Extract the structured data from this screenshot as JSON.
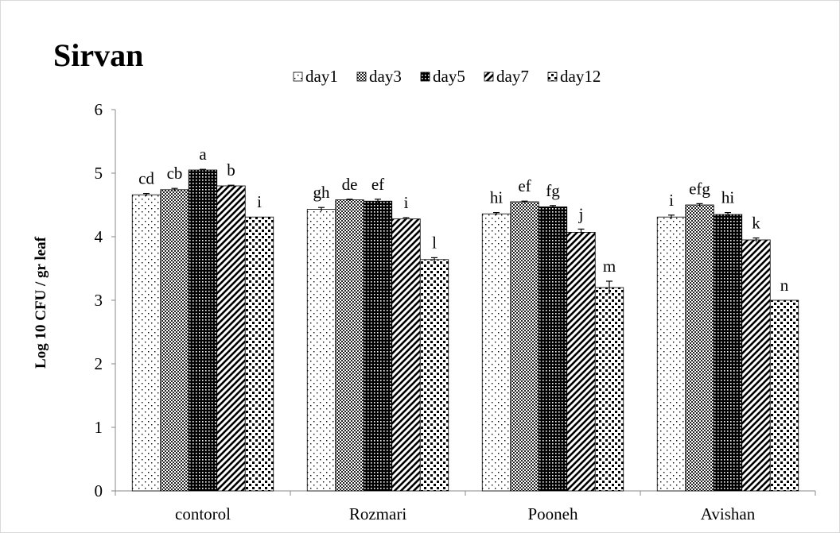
{
  "chart_data": {
    "type": "bar",
    "title": "Sirvan",
    "xlabel": "",
    "ylabel": "Log 10 CFU / gr leaf",
    "ylim": [
      0,
      6
    ],
    "yticks": [
      "0",
      "1",
      "2",
      "3",
      "4",
      "5",
      "6"
    ],
    "grid": false,
    "legend_position": "top",
    "categories": [
      "contorol",
      "Rozmari",
      "Pooneh",
      "Avishan"
    ],
    "series": [
      {
        "name": "day1",
        "pattern": "dots-sparse",
        "values": [
          4.66,
          4.43,
          4.36,
          4.31
        ],
        "errors": [
          0.02,
          0.03,
          0.02,
          0.03
        ],
        "letters": [
          "cd",
          "gh",
          "hi",
          "i"
        ]
      },
      {
        "name": "day3",
        "pattern": "checker-fine",
        "values": [
          4.74,
          4.58,
          4.55,
          4.5
        ],
        "errors": [
          0.02,
          0.01,
          0.01,
          0.02
        ],
        "letters": [
          "cb",
          "de",
          "ef",
          "efg"
        ]
      },
      {
        "name": "day5",
        "pattern": "dense-grid",
        "values": [
          5.05,
          4.56,
          4.47,
          4.35
        ],
        "errors": [
          0.01,
          0.03,
          0.02,
          0.03
        ],
        "letters": [
          "a",
          "ef",
          "fg",
          "hi"
        ]
      },
      {
        "name": "day7",
        "pattern": "diagonal",
        "values": [
          4.8,
          4.28,
          4.07,
          3.95
        ],
        "errors": [
          0.01,
          0.02,
          0.05,
          0.03
        ],
        "letters": [
          "b",
          "i",
          "j",
          "k"
        ]
      },
      {
        "name": "day12",
        "pattern": "checker-large",
        "values": [
          4.31,
          3.64,
          3.2,
          3.0
        ],
        "errors": [
          0.0,
          0.03,
          0.1,
          0.0
        ],
        "letters": [
          "i",
          "l",
          "m",
          "n"
        ]
      }
    ]
  }
}
